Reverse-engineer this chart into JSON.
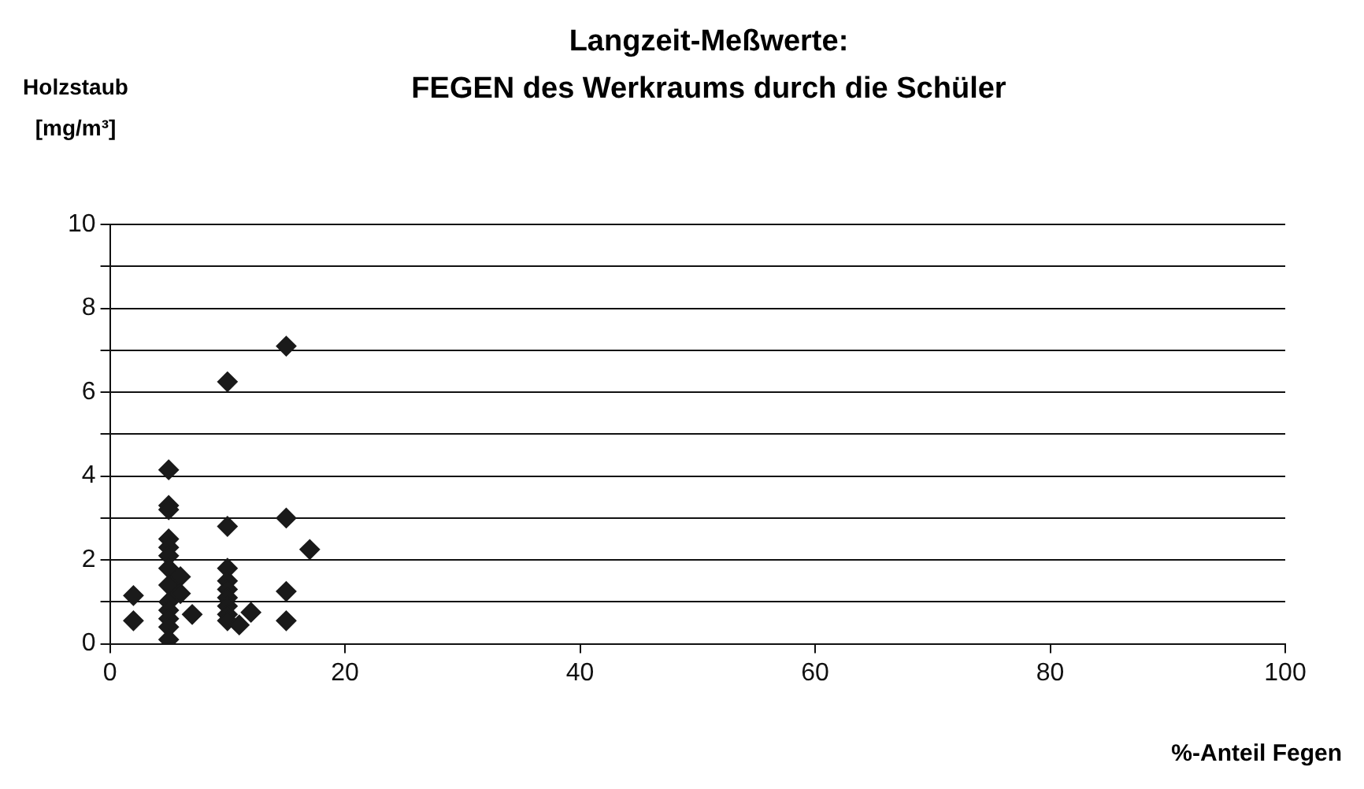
{
  "chart_data": {
    "type": "scatter",
    "title": "Langzeit-Meßwerte:\nFEGEN des Werkraums durch die Schüler",
    "ylabel": "Holzstaub\n[mg/m³]",
    "xlabel": "%-Anteil Fegen",
    "x": [
      2,
      2,
      5,
      5,
      5,
      5,
      5,
      5,
      5,
      5,
      5,
      5,
      5,
      5,
      5,
      6,
      6,
      7,
      10,
      10,
      10,
      10,
      10,
      10,
      10,
      10,
      10,
      11,
      12,
      15,
      15,
      15,
      15,
      17
    ],
    "values": [
      1.15,
      0.55,
      4.15,
      3.3,
      3.2,
      2.5,
      2.3,
      2.1,
      1.8,
      1.4,
      1.0,
      0.8,
      0.6,
      0.4,
      0.1,
      1.6,
      1.2,
      0.7,
      6.25,
      2.8,
      1.8,
      1.5,
      1.3,
      1.1,
      0.9,
      0.7,
      0.55,
      0.45,
      0.75,
      7.1,
      3.0,
      1.25,
      0.55,
      2.25
    ],
    "color": "#1a1a1a",
    "marker": "diamond",
    "xlim": [
      0,
      100
    ],
    "xticks": [
      0,
      20,
      40,
      60,
      80,
      100
    ],
    "ylim": [
      0,
      10
    ],
    "yticks": [
      0,
      {
        "value": 1,
        "label": null
      },
      2,
      {
        "value": 3,
        "label": null
      },
      4,
      {
        "value": 5,
        "label": null
      },
      6,
      {
        "value": 7,
        "label": null
      },
      8,
      {
        "value": 9,
        "label": null
      },
      10
    ],
    "grid": "y"
  }
}
